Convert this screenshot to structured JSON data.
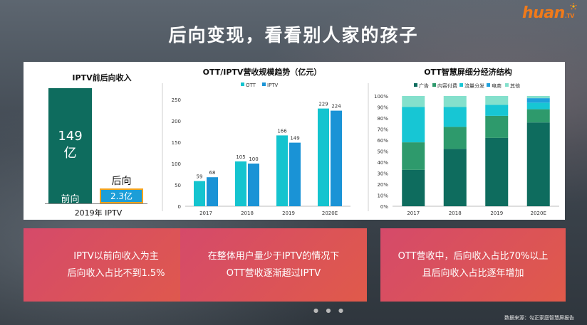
{
  "brand": {
    "logo_text": "huan",
    "logo_suffix": ".TV",
    "accent": "#f07a1a"
  },
  "title": "后向变现，看看别人家的孩子",
  "panel1": {
    "title": "IPTV前后向收入",
    "bars": [
      {
        "value_line1": "149",
        "value_line2": "亿",
        "label": "前向",
        "color": "#0e6c5e",
        "value": 149
      },
      {
        "value_label": "2.3亿",
        "label": "后向",
        "color": "#1c9ed8",
        "value": 2.3
      }
    ],
    "xlabel": "2019年  IPTV"
  },
  "chart_data": [
    {
      "type": "bar",
      "title": "OTT/IPTV营收规模趋势（亿元）",
      "categories": [
        "2017",
        "2018",
        "2019",
        "2020E"
      ],
      "series": [
        {
          "name": "OTT",
          "values": [
            59,
            105,
            166,
            229
          ],
          "color": "#14c4cf"
        },
        {
          "name": "IPTV",
          "values": [
            68,
            100,
            149,
            224
          ],
          "color": "#1a93d6"
        }
      ],
      "ylim": [
        0,
        250
      ],
      "yticks": [
        0,
        50,
        100,
        150,
        200,
        250
      ],
      "legend": "top"
    },
    {
      "type": "bar",
      "stacked": true,
      "title": "OTT智慧屏细分经济结构",
      "categories": [
        "2017",
        "2018",
        "2019",
        "2020E"
      ],
      "series": [
        {
          "name": "广告",
          "values": [
            33,
            52,
            62,
            76
          ],
          "color": "#0e6c5e"
        },
        {
          "name": "内容付费",
          "values": [
            25,
            20,
            20,
            12
          ],
          "color": "#2e9a6c"
        },
        {
          "name": "流量分发",
          "values": [
            32,
            18,
            10,
            6
          ],
          "color": "#17c6d4"
        },
        {
          "name": "电商",
          "values": [
            0,
            0,
            0,
            4
          ],
          "color": "#1fa0dc"
        },
        {
          "name": "其他",
          "values": [
            10,
            10,
            8,
            2
          ],
          "color": "#84e0cc"
        }
      ],
      "yticks": [
        "0%",
        "10%",
        "20%",
        "30%",
        "40%",
        "50%",
        "60%",
        "70%",
        "80%",
        "90%",
        "100%"
      ],
      "legend": "top"
    }
  ],
  "callouts": [
    {
      "line1": "IPTV以前向收入为主",
      "line2": "后向收入占比不到1.5%"
    },
    {
      "line1": "在整体用户量少于IPTV的情况下",
      "line2": "OTT营收逐渐超过IPTV"
    },
    {
      "line1": "OTT营收中，后向收入占比70%以上",
      "line2": "且后向收入占比逐年增加"
    }
  ],
  "source": "数据来源：勾正家庭智慧屏报告"
}
